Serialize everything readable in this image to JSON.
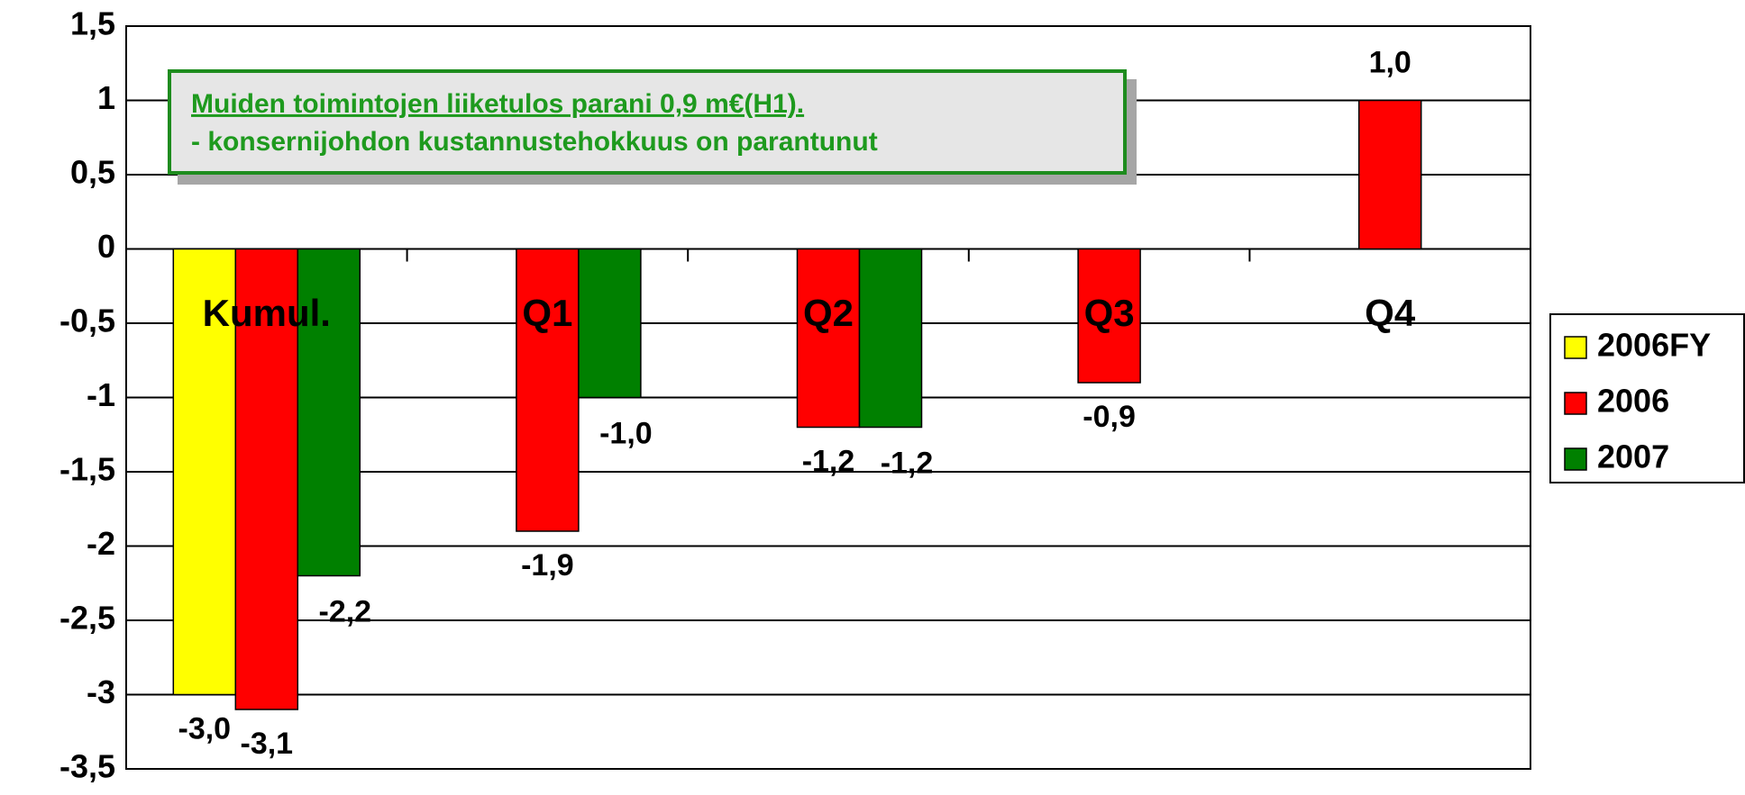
{
  "chart_data": {
    "type": "bar",
    "categories": [
      "Kumul.",
      "Q1",
      "Q2",
      "Q3",
      "Q4"
    ],
    "series": [
      {
        "name": "2006FY",
        "color": "#ffff00",
        "values": [
          -3.0,
          null,
          null,
          null,
          null
        ],
        "value_labels": [
          "-3,0",
          null,
          null,
          null,
          null
        ]
      },
      {
        "name": "2006",
        "color": "#ff0000",
        "values": [
          -3.1,
          -1.9,
          -1.2,
          -0.9,
          1.0
        ],
        "value_labels": [
          "-3,1",
          "-1,9",
          "-1,2",
          "-0,9",
          "1,0"
        ]
      },
      {
        "name": "2007",
        "color": "#008000",
        "values": [
          -2.2,
          -1.0,
          -1.2,
          null,
          null
        ],
        "value_labels": [
          "-2,2",
          "-1,0",
          "-1,2",
          null,
          null
        ]
      }
    ],
    "ylim": [
      -3.5,
      1.5
    ],
    "yticks": [
      {
        "value": 1.5,
        "label": "1,5"
      },
      1,
      {
        "value": 0.5,
        "label": "0,5"
      },
      0,
      {
        "value": -0.5,
        "label": "-0,5"
      },
      -1,
      {
        "value": -1.5,
        "label": "-1,5"
      },
      -2,
      {
        "value": -2.5,
        "label": "-2,5"
      },
      -3,
      {
        "value": -3.5,
        "label": "-3,5"
      }
    ],
    "grid": true,
    "legend": "right",
    "annotation": [
      "Muiden toimintojen liiketulos parani 0,9 m€(H1).",
      "- konsernijohdon kustannustehokkuus on parantunut"
    ]
  }
}
